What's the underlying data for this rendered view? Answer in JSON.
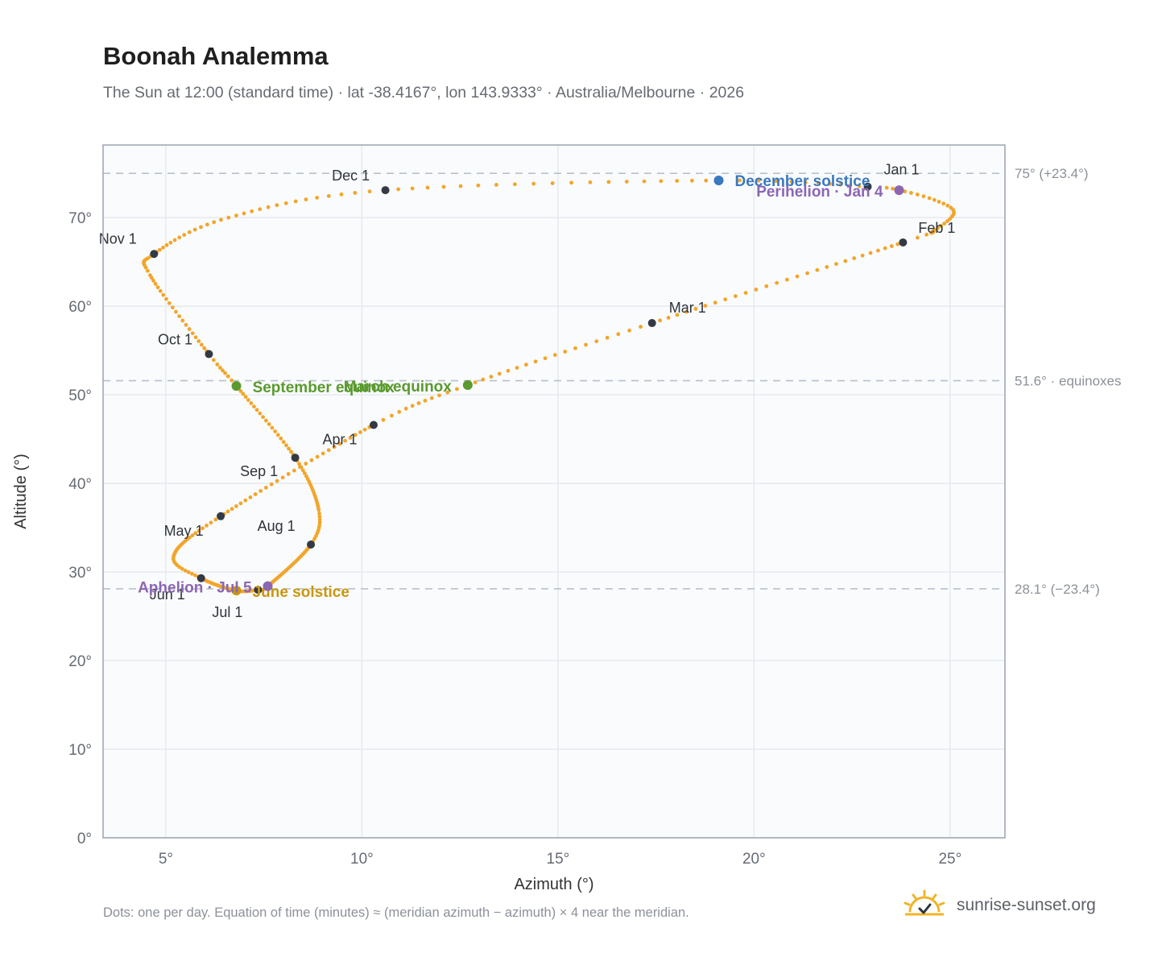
{
  "header": {
    "title": "Boonah Analemma",
    "subtitle": "The Sun at 12:00 (standard time) · lat -38.4167°, lon 143.9333° · Australia/Melbourne · 2026"
  },
  "footer": {
    "note": "Dots: one per day. Equation of time (minutes) ≈ (meridian azimuth − azimuth) × 4 near the meridian.",
    "brand": "sunrise-sunset.org",
    "brand_icon": "sun-check-icon"
  },
  "colors": {
    "analemma": "#f2a52a",
    "month_marker": "#333a44",
    "equinox": "#5a9a2e",
    "december_solstice": "#3a78c0",
    "june_solstice": "#c9970f",
    "apsis": "#8c66b3",
    "plot_bg": "#f9fbfd",
    "grid": "#e6eaef",
    "reference_line": "#b8c1cb"
  },
  "chart_data": {
    "type": "scatter",
    "xlabel": "Azimuth (°)",
    "ylabel": "Altitude (°)",
    "xlim": [
      3.4,
      26.4
    ],
    "ylim": [
      0,
      78.2
    ],
    "x_ticks": [
      5,
      10,
      15,
      20,
      25
    ],
    "y_ticks": [
      0,
      10,
      20,
      30,
      40,
      50,
      60,
      70
    ],
    "tick_suffix": "°",
    "grid": true,
    "reference_lines": [
      {
        "y": 75.0,
        "label": "75° (+23.4°)"
      },
      {
        "y": 51.6,
        "label": "51.6° · equinoxes"
      },
      {
        "y": 28.1,
        "label": "28.1° (−23.4°)"
      }
    ],
    "path_control_points": [
      {
        "day": 1,
        "x": 22.9,
        "y": 73.5
      },
      {
        "day": 4,
        "x": 23.7,
        "y": 73.1
      },
      {
        "day": 10,
        "x": 24.6,
        "y": 72.0
      },
      {
        "day": 16,
        "x": 25.1,
        "y": 70.6
      },
      {
        "day": 24,
        "x": 24.6,
        "y": 68.6
      },
      {
        "day": 32,
        "x": 23.8,
        "y": 67.2
      },
      {
        "day": 60,
        "x": 17.4,
        "y": 58.1
      },
      {
        "day": 79,
        "x": 12.7,
        "y": 51.1
      },
      {
        "day": 91,
        "x": 10.3,
        "y": 46.6
      },
      {
        "day": 121,
        "x": 6.4,
        "y": 36.3
      },
      {
        "day": 140,
        "x": 5.2,
        "y": 31.8
      },
      {
        "day": 152,
        "x": 5.9,
        "y": 29.3
      },
      {
        "day": 172,
        "x": 6.8,
        "y": 27.9
      },
      {
        "day": 182,
        "x": 7.35,
        "y": 28.0
      },
      {
        "day": 186,
        "x": 7.6,
        "y": 28.4
      },
      {
        "day": 213,
        "x": 8.7,
        "y": 33.1
      },
      {
        "day": 225,
        "x": 8.9,
        "y": 37.0
      },
      {
        "day": 244,
        "x": 8.3,
        "y": 42.9
      },
      {
        "day": 266,
        "x": 6.8,
        "y": 51.0
      },
      {
        "day": 274,
        "x": 6.1,
        "y": 54.6
      },
      {
        "day": 295,
        "x": 4.6,
        "y": 63.5
      },
      {
        "day": 305,
        "x": 4.7,
        "y": 65.9
      },
      {
        "day": 320,
        "x": 6.6,
        "y": 70.0
      },
      {
        "day": 335,
        "x": 10.6,
        "y": 73.1
      },
      {
        "day": 355,
        "x": 19.1,
        "y": 74.2
      },
      {
        "day": 366,
        "x": 22.9,
        "y": 73.5
      }
    ],
    "month_markers": [
      {
        "label": "Jan 1",
        "x": 22.9,
        "y": 73.5
      },
      {
        "label": "Feb 1",
        "x": 23.8,
        "y": 67.2
      },
      {
        "label": "Mar 1",
        "x": 17.4,
        "y": 58.1
      },
      {
        "label": "Apr 1",
        "x": 10.3,
        "y": 46.6
      },
      {
        "label": "May 1",
        "x": 6.4,
        "y": 36.3
      },
      {
        "label": "Jun 1",
        "x": 5.9,
        "y": 29.3
      },
      {
        "label": "Jul 1",
        "x": 7.35,
        "y": 28.0
      },
      {
        "label": "Aug 1",
        "x": 8.7,
        "y": 33.1
      },
      {
        "label": "Sep 1",
        "x": 8.3,
        "y": 42.9
      },
      {
        "label": "Oct 1",
        "x": 6.1,
        "y": 54.6
      },
      {
        "label": "Nov 1",
        "x": 4.7,
        "y": 65.9
      },
      {
        "label": "Dec 1",
        "x": 10.6,
        "y": 73.1
      }
    ],
    "events": [
      {
        "label": "March equinox",
        "x": 12.7,
        "y": 51.1,
        "kind": "equinox"
      },
      {
        "label": "September equinox",
        "x": 6.8,
        "y": 51.0,
        "kind": "equinox"
      },
      {
        "label": "December solstice",
        "x": 19.1,
        "y": 74.2,
        "kind": "december_solstice"
      },
      {
        "label": "June solstice",
        "x": 6.8,
        "y": 27.9,
        "kind": "june_solstice"
      },
      {
        "label": "Perihelion · Jan 4",
        "x": 23.7,
        "y": 73.1,
        "kind": "apsis"
      },
      {
        "label": "Aphelion · Jul 5",
        "x": 7.6,
        "y": 28.4,
        "kind": "apsis"
      }
    ]
  }
}
